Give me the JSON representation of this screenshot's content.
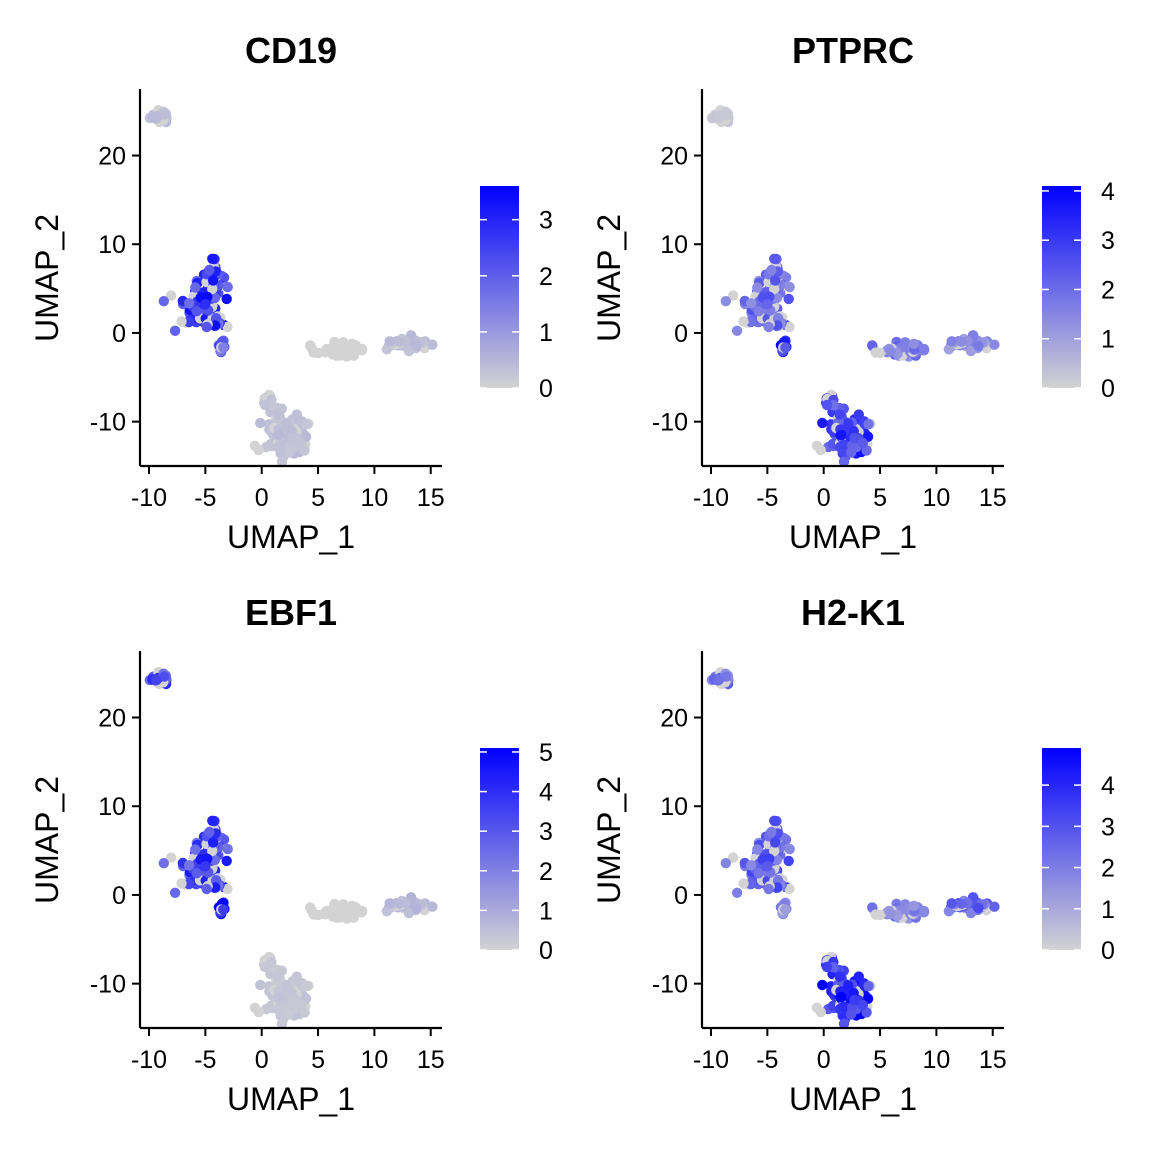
{
  "colors": {
    "low": "#D3D3D3",
    "high": "#0000FF",
    "axis": "#000000",
    "background": "#FFFFFF"
  },
  "chart_data": [
    {
      "type": "scatter",
      "title": "CD19",
      "xlabel": "UMAP_1",
      "ylabel": "UMAP_2",
      "xlim": [
        -10.8,
        16
      ],
      "ylim": [
        -15,
        27.5
      ],
      "x_ticks": [
        -10,
        -5,
        0,
        5,
        10,
        15
      ],
      "x_tick_labels": [
        "-10",
        "-5",
        "0",
        "5",
        "10",
        "15"
      ],
      "y_ticks": [
        -10,
        0,
        10,
        20
      ],
      "y_tick_labels": [
        "-10",
        "0",
        "10",
        "20"
      ],
      "colorbar": {
        "min": 0,
        "max": 3.6,
        "ticks": [
          0,
          1,
          2,
          3
        ],
        "tick_labels": [
          "0",
          "1",
          "2",
          "3"
        ]
      },
      "expression": {
        "top": 0.35,
        "left": 2.4,
        "spur": 1.8,
        "mid": 0,
        "right": 0.35,
        "bottom": 0.3
      },
      "grid": false,
      "legend": "right"
    },
    {
      "type": "scatter",
      "title": "PTPRC",
      "xlabel": "UMAP_1",
      "ylabel": "UMAP_2",
      "xlim": [
        -10.8,
        16
      ],
      "ylim": [
        -15,
        27.5
      ],
      "x_ticks": [
        -10,
        -5,
        0,
        5,
        10,
        15
      ],
      "x_tick_labels": [
        "-10",
        "-5",
        "0",
        "5",
        "10",
        "15"
      ],
      "y_ticks": [
        -10,
        0,
        10,
        20
      ],
      "y_tick_labels": [
        "-10",
        "0",
        "10",
        "20"
      ],
      "colorbar": {
        "min": 0,
        "max": 4.1,
        "ticks": [
          0,
          1,
          2,
          3,
          4
        ],
        "tick_labels": [
          "0",
          "1",
          "2",
          "3",
          "4"
        ]
      },
      "expression": {
        "top": 0.2,
        "left": 1.8,
        "spur": 3.0,
        "mid": 1.6,
        "right": 1.3,
        "bottom": 2.6
      },
      "grid": false,
      "legend": "right"
    },
    {
      "type": "scatter",
      "title": "EBF1",
      "xlabel": "UMAP_1",
      "ylabel": "UMAP_2",
      "xlim": [
        -10.8,
        16
      ],
      "ylim": [
        -15,
        27.5
      ],
      "x_ticks": [
        -10,
        -5,
        0,
        5,
        10,
        15
      ],
      "x_tick_labels": [
        "-10",
        "-5",
        "0",
        "5",
        "10",
        "15"
      ],
      "y_ticks": [
        -10,
        0,
        10,
        20
      ],
      "y_tick_labels": [
        "-10",
        "0",
        "10",
        "20"
      ],
      "colorbar": {
        "min": 0,
        "max": 5.1,
        "ticks": [
          0,
          1,
          2,
          3,
          4,
          5
        ],
        "tick_labels": [
          "0",
          "1",
          "2",
          "3",
          "4",
          "5"
        ]
      },
      "expression": {
        "top": 3.0,
        "left": 3.2,
        "spur": 4.6,
        "mid": 0,
        "right": 0.6,
        "bottom": 0.3
      },
      "grid": false,
      "legend": "right"
    },
    {
      "type": "scatter",
      "title": "H2-K1",
      "xlabel": "UMAP_1",
      "ylabel": "UMAP_2",
      "xlim": [
        -10.8,
        16
      ],
      "ylim": [
        -15,
        27.5
      ],
      "x_ticks": [
        -10,
        -5,
        0,
        5,
        10,
        15
      ],
      "x_tick_labels": [
        "-10",
        "-5",
        "0",
        "5",
        "10",
        "15"
      ],
      "y_ticks": [
        -10,
        0,
        10,
        20
      ],
      "y_tick_labels": [
        "-10",
        "0",
        "10",
        "20"
      ],
      "colorbar": {
        "min": 0,
        "max": 4.9,
        "ticks": [
          0,
          1,
          2,
          3,
          4
        ],
        "tick_labels": [
          "0",
          "1",
          "2",
          "3",
          "4"
        ]
      },
      "expression": {
        "top": 2.0,
        "left": 2.4,
        "spur": 1.6,
        "mid": 1.7,
        "right": 2.4,
        "bottom": 3.6
      },
      "grid": false,
      "legend": "right"
    }
  ]
}
